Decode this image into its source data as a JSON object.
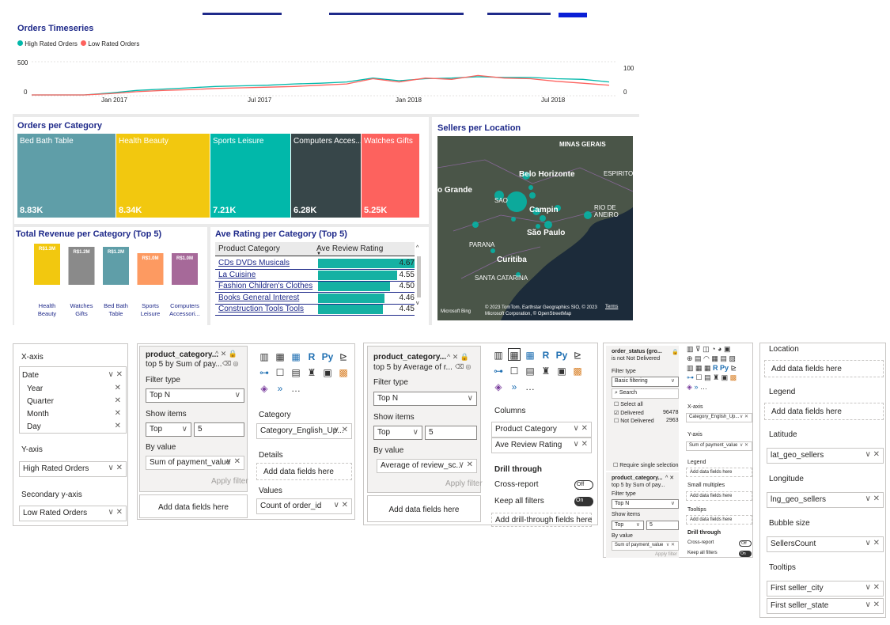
{
  "timeseries": {
    "title": "Orders Timeseries",
    "legend": [
      {
        "name": "High Rated Orders",
        "color": "#01b8aa"
      },
      {
        "name": "Low Rated Orders",
        "color": "#fd625e"
      }
    ],
    "y_left_ticks": [
      "500",
      "0"
    ],
    "y_right_ticks": [
      "100",
      "0"
    ],
    "x_ticks": [
      "Jan 2017",
      "Jul 2017",
      "Jan 2018",
      "Jul 2018"
    ]
  },
  "chart_data": [
    {
      "type": "line",
      "title": "Orders Timeseries",
      "x": [
        "2016-10",
        "2016-11",
        "2016-12",
        "2017-01",
        "2017-02",
        "2017-03",
        "2017-04",
        "2017-05",
        "2017-06",
        "2017-07",
        "2017-08",
        "2017-09",
        "2017-10",
        "2017-11",
        "2017-12",
        "2018-01",
        "2018-02",
        "2018-03",
        "2018-04",
        "2018-05",
        "2018-06",
        "2018-07",
        "2018-08"
      ],
      "series": [
        {
          "name": "High Rated Orders",
          "values": [
            0,
            0,
            0,
            30,
            70,
            90,
            110,
            130,
            140,
            150,
            170,
            180,
            200,
            260,
            220,
            250,
            260,
            280,
            270,
            270,
            250,
            240,
            200
          ]
        },
        {
          "name": "Low Rated Orders",
          "values": [
            0,
            0,
            0,
            20,
            50,
            70,
            80,
            100,
            110,
            120,
            130,
            150,
            170,
            250,
            200,
            260,
            240,
            300,
            260,
            250,
            210,
            180,
            150
          ]
        }
      ],
      "ylim": [
        0,
        500
      ],
      "y2lim": [
        0,
        100
      ]
    },
    {
      "type": "heatmap",
      "title": "Orders per Category",
      "categories": [
        "Bed Bath Table",
        "Health Beauty",
        "Sports Leisure",
        "Computers Acces...",
        "Watches Gifts"
      ],
      "values": [
        8830,
        8340,
        7210,
        6280,
        5250
      ],
      "labels": [
        "8.83K",
        "8.34K",
        "7.21K",
        "6.28K",
        "5.25K"
      ]
    },
    {
      "type": "bar",
      "title": "Total Revenue per Category (Top 5)",
      "categories": [
        "Health Beauty",
        "Watches Gifts",
        "Bed Bath Table",
        "Sports Leisure",
        "Computers Accessori..."
      ],
      "values": [
        1.3,
        1.2,
        1.2,
        1.0,
        1.0
      ],
      "labels": [
        "R$1.3M",
        "R$1.2M",
        "R$1.2M",
        "R$1.0M",
        "R$1.0M"
      ],
      "colors": [
        "#f2c80f",
        "#8a8a8a",
        "#5f9ea8",
        "#fd9a61",
        "#a66999"
      ]
    },
    {
      "type": "table",
      "title": "Ave Rating per Category (Top 5)",
      "columns": [
        "Product Category",
        "Ave Review Rating"
      ],
      "rows": [
        [
          "CDs DVDs Musicals",
          4.67
        ],
        [
          "La Cuisine",
          4.55
        ],
        [
          "Fashion Children's Clothes",
          4.5
        ],
        [
          "Books General Interest",
          4.46
        ],
        [
          "Construction Tools Tools",
          4.45
        ]
      ]
    }
  ],
  "treemap": {
    "title": "Orders per Category",
    "cells": [
      {
        "label": "Bed Bath Table",
        "value": "8.83K",
        "color": "#5f9ea8"
      },
      {
        "label": "Health Beauty",
        "value": "8.34K",
        "color": "#f2c80f"
      },
      {
        "label": "Sports Leisure",
        "value": "7.21K",
        "color": "#01b8aa"
      },
      {
        "label": "Computers Acces...",
        "value": "6.28K",
        "color": "#374649"
      },
      {
        "label": "Watches Gifts",
        "value": "5.25K",
        "color": "#fd625e"
      }
    ]
  },
  "revenue": {
    "title": "Total Revenue per Category (Top 5)",
    "bars": [
      {
        "label": "R$1.3M",
        "cat1": "Health",
        "cat2": "Beauty",
        "value": 1.3,
        "color": "#f2c80f"
      },
      {
        "label": "R$1.2M",
        "cat1": "Watches",
        "cat2": "Gifts",
        "value": 1.2,
        "color": "#8a8a8a"
      },
      {
        "label": "R$1.2M",
        "cat1": "Bed Bath",
        "cat2": "Table",
        "value": 1.2,
        "color": "#5f9ea8"
      },
      {
        "label": "R$1.0M",
        "cat1": "Sports",
        "cat2": "Leisure",
        "value": 1.0,
        "color": "#fd9a61"
      },
      {
        "label": "R$1.0M",
        "cat1": "Computers",
        "cat2": "Accessori...",
        "value": 1.0,
        "color": "#a66999"
      }
    ]
  },
  "rating": {
    "title": "Ave Rating per Category (Top 5)",
    "col1": "Product Category",
    "col2": "Ave Review Rating",
    "rows": [
      {
        "name": "CDs DVDs Musicals",
        "value": "4.67"
      },
      {
        "name": "La Cuisine",
        "value": "4.55"
      },
      {
        "name": "Fashion Children's Clothes",
        "value": "4.50"
      },
      {
        "name": "Books General Interest",
        "value": "4.46"
      },
      {
        "name": "Construction Tools Tools",
        "value": "4.45"
      }
    ]
  },
  "map": {
    "title": "Sellers per Location",
    "labels": [
      "MINAS GERAIS",
      "Belo Horizonte",
      "ESPIRITO",
      "o Grande",
      "SAO",
      "Campin",
      "RIO DE",
      "ANEIRO",
      "São Paulo",
      "PARANA",
      "Curitiba",
      "SANTA CATARINA"
    ],
    "attribution": "© 2023 TomTom, Earthstar Geographics SIO, © 2023 Microsoft Corporation, © OpenStreetMap",
    "terms": "Terms",
    "bing": "Microsoft Bing"
  },
  "pane1": {
    "xaxis": "X-axis",
    "date": "Date",
    "date_items": [
      "Year",
      "Quarter",
      "Month",
      "Day"
    ],
    "yaxis": "Y-axis",
    "yfield": "High Rated Orders",
    "secondary": "Secondary y-axis",
    "secfield": "Low Rated Orders"
  },
  "pane2": {
    "filter_title": "product_category...",
    "filter_sub": "top 5 by Sum of pay...",
    "filter_type_label": "Filter type",
    "filter_type": "Top N",
    "show_items": "Show items",
    "show_dir": "Top",
    "show_n": "5",
    "by_value": "By value",
    "by_value_field": "Sum of payment_value",
    "apply": "Apply filter",
    "add_fields": "Add data fields here",
    "category_label": "Category",
    "category_field": "Category_English_Up...",
    "details_label": "Details",
    "details_add": "Add data fields here",
    "values_label": "Values",
    "values_field": "Count of order_id"
  },
  "pane3": {
    "filter_title": "product_category...",
    "filter_sub": "top 5 by Average of r...",
    "filter_type_label": "Filter type",
    "filter_type": "Top N",
    "show_items": "Show items",
    "show_dir": "Top",
    "show_n": "5",
    "by_value": "By value",
    "by_value_field": "Average of review_sc...",
    "apply": "Apply filter",
    "add_fields": "Add data fields here",
    "columns_label": "Columns",
    "col1": "Product Category",
    "col2": "Ave Review Rating",
    "drill": "Drill through",
    "cross": "Cross-report",
    "cross_state": "Off",
    "keep": "Keep all filters",
    "keep_state": "On",
    "add_drill": "Add drill-through fields here"
  },
  "pane4": {
    "f1_title": "order_status (gro...",
    "f1_sub": "is not Not Delivered",
    "filter_type_label": "Filter type",
    "filter_type": "Basic filtering",
    "search": "Search",
    "select_all": "Select all",
    "opt1": "Delivered",
    "opt1_count": "96478",
    "opt2": "Not Delivered",
    "opt2_count": "2963",
    "require": "Require single selection",
    "f2_title": "product_category...",
    "f2_sub": "top 5 by Sum of pay...",
    "f2_type": "Top N",
    "show_items": "Show items",
    "show_dir": "Top",
    "show_n": "5",
    "by_value": "By value",
    "by_value_field": "Sum of payment_value",
    "apply": "Apply filter",
    "xaxis": "X-axis",
    "xfield": "Category_English_Up...",
    "yaxis": "Y-axis",
    "yfield": "Sum of payment_value",
    "legend": "Legend",
    "add1": "Add data fields here",
    "small": "Small multiples",
    "add2": "Add data fields here",
    "tooltips": "Tooltips",
    "add3": "Add data fields here",
    "drill": "Drill through",
    "cross": "Cross-report",
    "cross_state": "Off",
    "keep": "Keep all filters",
    "keep_state": "On"
  },
  "pane5": {
    "location": "Location",
    "loc_add": "Add data fields here",
    "legend": "Legend",
    "legend_add": "Add data fields here",
    "latitude": "Latitude",
    "lat_field": "lat_geo_sellers",
    "longitude": "Longitude",
    "lng_field": "lng_geo_sellers",
    "bubble": "Bubble size",
    "bubble_field": "SellersCount",
    "tooltips": "Tooltips",
    "tip1": "First seller_city",
    "tip2": "First seller_state"
  }
}
